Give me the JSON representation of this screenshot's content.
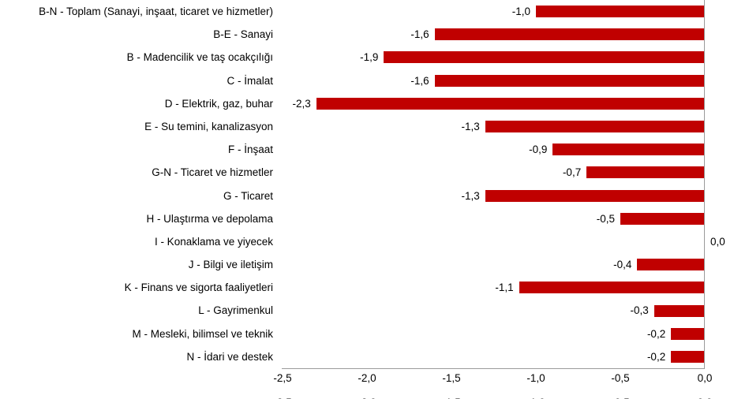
{
  "chart_data": {
    "type": "bar",
    "orientation": "horizontal",
    "title": "",
    "categories": [
      "B-N - Toplam (Sanayi, inşaat, ticaret ve hizmetler)",
      "B-E - Sanayi",
      "B - Madencilik ve taş ocakçılığı",
      "C - İmalat",
      "D - Elektrik, gaz, buhar",
      "E - Su temini, kanalizasyon",
      "F - İnşaat",
      "G-N - Ticaret ve hizmetler",
      "G - Ticaret",
      "H - Ulaştırma ve depolama",
      "I - Konaklama ve yiyecek",
      "J - Bilgi ve iletişim",
      "K - Finans ve sigorta faaliyetleri",
      "L - Gayrimenkul",
      "M - Mesleki, bilimsel ve teknik",
      "N - İdari ve destek"
    ],
    "values": [
      -1.0,
      -1.6,
      -1.9,
      -1.6,
      -2.3,
      -1.3,
      -0.9,
      -0.7,
      -1.3,
      -0.5,
      0.0,
      -0.4,
      -1.1,
      -0.3,
      -0.2,
      -0.2
    ],
    "value_labels": [
      "-1,0",
      "-1,6",
      "-1,9",
      "-1,6",
      "-2,3",
      "-1,3",
      "-0,9",
      "-0,7",
      "-1,3",
      "-0,5",
      "0,0",
      "-0,4",
      "-1,1",
      "-0,3",
      "-0,2",
      "-0,2"
    ],
    "xlim": [
      -2.5,
      0.0
    ],
    "x_ticks": [
      -2.5,
      -2.0,
      -1.5,
      -1.0,
      -0.5,
      0.0
    ],
    "x_tick_labels": [
      "-2,5",
      "-2,0",
      "-1,5",
      "-1,0",
      "-0,5",
      "0,0"
    ],
    "bar_color": "#c00000",
    "axis_color": "#9b9b9b",
    "grid": false,
    "legend": false
  }
}
